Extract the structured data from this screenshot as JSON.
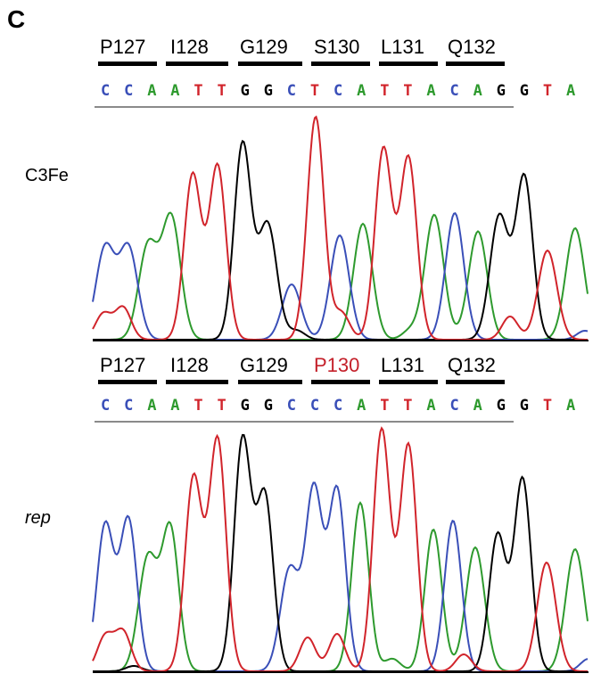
{
  "panel_letter": "C",
  "colors": {
    "A": "#2e9a2e",
    "C": "#3a4fb8",
    "G": "#000000",
    "T": "#d1242b",
    "mutation": "#c4202a",
    "text": "#000000"
  },
  "panels": [
    {
      "label": "C3Fe",
      "label_italic": false,
      "codons": [
        {
          "text": "P127",
          "highlight": false
        },
        {
          "text": "I128",
          "highlight": false
        },
        {
          "text": "G129",
          "highlight": false
        },
        {
          "text": "S130",
          "highlight": false
        },
        {
          "text": "L131",
          "highlight": false
        },
        {
          "text": "Q132",
          "highlight": false
        }
      ],
      "sequence": [
        "C",
        "C",
        "A",
        "A",
        "T",
        "T",
        "G",
        "G",
        "C",
        "T",
        "C",
        "A",
        "T",
        "T",
        "A",
        "C",
        "A",
        "G",
        "G",
        "T",
        "A"
      ]
    },
    {
      "label": "rep",
      "label_italic": true,
      "codons": [
        {
          "text": "P127",
          "highlight": false
        },
        {
          "text": "I128",
          "highlight": false
        },
        {
          "text": "G129",
          "highlight": false
        },
        {
          "text": "P130",
          "highlight": true
        },
        {
          "text": "L131",
          "highlight": false
        },
        {
          "text": "Q132",
          "highlight": false
        }
      ],
      "sequence": [
        "C",
        "C",
        "A",
        "A",
        "T",
        "T",
        "G",
        "G",
        "C",
        "C",
        "C",
        "A",
        "T",
        "T",
        "A",
        "C",
        "A",
        "G",
        "G",
        "T",
        "A"
      ]
    }
  ]
}
